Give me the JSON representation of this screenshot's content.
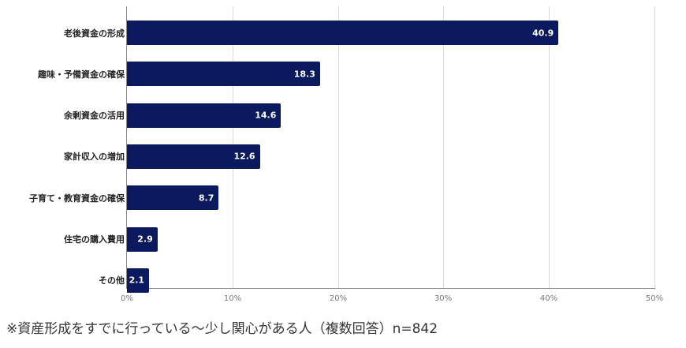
{
  "chart_data": {
    "type": "bar",
    "orientation": "horizontal",
    "title": "",
    "xlabel": "",
    "ylabel": "",
    "categories": [
      "老後資金の形成",
      "趣味・予備資金の確保",
      "余剰資金の活用",
      "家計収入の増加",
      "子育て・教育資金の確保",
      "住宅の購入費用",
      "その他"
    ],
    "values": [
      40.9,
      18.3,
      14.6,
      12.6,
      8.7,
      2.9,
      2.1
    ],
    "xlim": [
      0,
      50
    ],
    "xticks": [
      "0%",
      "10%",
      "20%",
      "30%",
      "40%",
      "50%"
    ],
    "grid": true,
    "value_labels": true,
    "bar_color": "#0b1a5e",
    "legend": null
  },
  "footnote": "※資産形成をすでに行っている～少し関心がある人（複数回答）n=842"
}
